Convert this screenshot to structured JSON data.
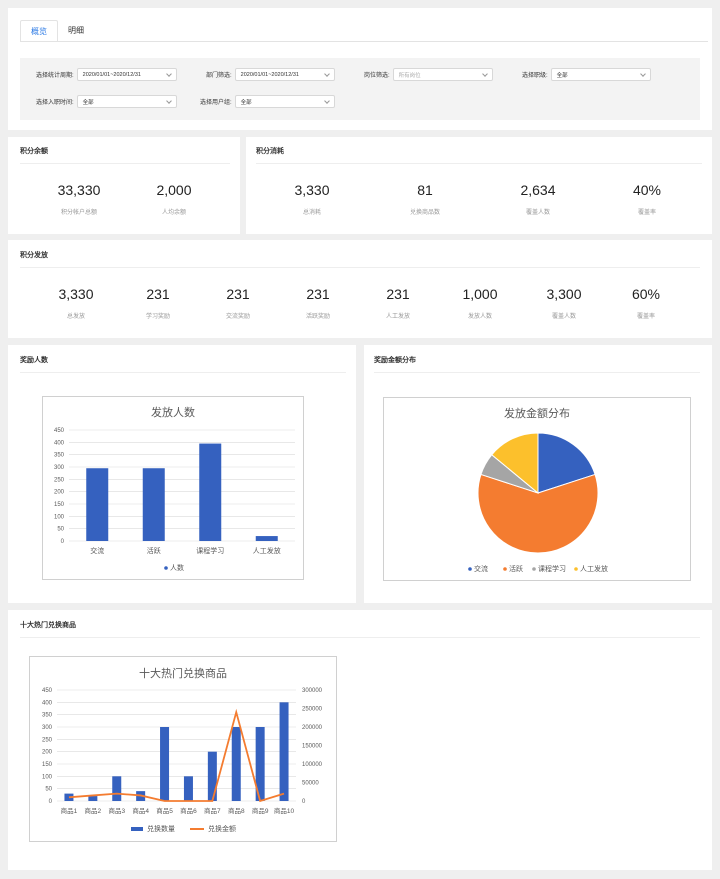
{
  "tabs": [
    {
      "label": "概览"
    },
    {
      "label": "明细"
    }
  ],
  "filters": {
    "period": {
      "label": "选择统计周期:",
      "value": "2020/01/01~2020/12/31"
    },
    "dept": {
      "label": "部门筛选:",
      "value": "2020/01/01~2020/12/31"
    },
    "position": {
      "label": "岗位筛选:",
      "placeholder": "所有岗位"
    },
    "level": {
      "label": "选择职级:",
      "value": "全部"
    },
    "hire": {
      "label": "选择入职时间:",
      "value": "全部"
    },
    "usergroup": {
      "label": "选择用户组:",
      "value": "全部"
    }
  },
  "balance": {
    "title": "积分余额",
    "stats": [
      {
        "value": "33,330",
        "label": "积分帐户总额"
      },
      {
        "value": "2,000",
        "label": "人均余额"
      }
    ]
  },
  "consume": {
    "title": "积分消耗",
    "stats": [
      {
        "value": "3,330",
        "label": "总消耗"
      },
      {
        "value": "81",
        "label": "兑换商品数"
      },
      {
        "value": "2,634",
        "label": "覆盖人数"
      },
      {
        "value": "40%",
        "label": "覆盖率"
      }
    ]
  },
  "issue": {
    "title": "积分发放",
    "stats": [
      {
        "value": "3,330",
        "label": "总发放"
      },
      {
        "value": "231",
        "label": "学习奖励"
      },
      {
        "value": "231",
        "label": "交流奖励"
      },
      {
        "value": "231",
        "label": "活跃奖励"
      },
      {
        "value": "231",
        "label": "人工发放"
      },
      {
        "value": "1,000",
        "label": "发放人数"
      },
      {
        "value": "3,300",
        "label": "覆盖人数"
      },
      {
        "value": "60%",
        "label": "覆盖率"
      }
    ]
  },
  "reward_people": {
    "section_title": "奖励人数"
  },
  "reward_amount": {
    "section_title": "奖励金额分布"
  },
  "top_products": {
    "section_title": "十大热门兑换商品"
  },
  "colors": {
    "blue": "#3561bf",
    "orange": "#f47c30",
    "gray": "#a5a5a5",
    "yellow": "#fcc02c",
    "accent": "#2d7be5"
  },
  "chart_data": [
    {
      "type": "bar",
      "title": "发放人数",
      "categories": [
        "交流",
        "活跃",
        "课程学习",
        "人工发放"
      ],
      "series": [
        {
          "name": "人数",
          "values": [
            295,
            295,
            395,
            20
          ]
        }
      ],
      "ylim": [
        0,
        450
      ],
      "yticks": [
        0,
        50,
        100,
        150,
        200,
        250,
        300,
        350,
        400,
        450
      ],
      "grid": true,
      "legend": "bottom"
    },
    {
      "type": "pie",
      "title": "发放金额分布",
      "labels": [
        "交流",
        "活跃",
        "课程学习",
        "人工发放"
      ],
      "values": [
        20,
        60,
        6,
        14
      ],
      "legend": "bottom"
    },
    {
      "type": "bar",
      "title": "十大热门兑换商品",
      "categories": [
        "商品1",
        "商品2",
        "商品3",
        "商品4",
        "商品5",
        "商品6",
        "商品7",
        "商品8",
        "商品9",
        "商品10"
      ],
      "series": [
        {
          "name": "兑换数量",
          "type": "bar",
          "axis": "left",
          "values": [
            30,
            20,
            100,
            40,
            300,
            100,
            200,
            300,
            300,
            400
          ]
        },
        {
          "name": "兑换金额",
          "type": "line",
          "axis": "right",
          "values": [
            10000,
            15000,
            20000,
            15000,
            0,
            0,
            0,
            240000,
            0,
            20000
          ]
        }
      ],
      "ylim": [
        0,
        450
      ],
      "yticks": [
        0,
        50,
        100,
        150,
        200,
        250,
        300,
        350,
        400,
        450
      ],
      "y2lim": [
        0,
        300000
      ],
      "y2ticks": [
        0,
        50000,
        100000,
        150000,
        200000,
        250000,
        300000
      ],
      "grid": true,
      "legend": "bottom"
    }
  ]
}
